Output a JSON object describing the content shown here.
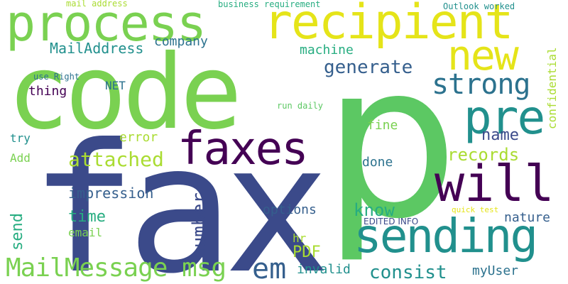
{
  "palette": {
    "background": "#ffffff",
    "dark_purple": "#440154",
    "indigo": "#3b4a8a",
    "blue": "#355f8d",
    "teal_blue": "#2c728e",
    "teal": "#21908d",
    "green_teal": "#27ad81",
    "green": "#5cc863",
    "light_green": "#7ad151",
    "lime": "#aadc32",
    "yellow": "#e5e419"
  },
  "words": {
    "fax": "fax",
    "p": "p",
    "code": "code",
    "process": "process",
    "recipient": "recipient",
    "faxes": "faxes",
    "sending": "sending",
    "will": "will",
    "pre": "pre",
    "new": "new",
    "em": "em",
    "strong": "strong",
    "mail_message_msg": "MailMessage msg",
    "attached": "attached",
    "generate": "generate",
    "records": "records",
    "number": "number",
    "consist": "consist",
    "pdf": "PDF",
    "know": "know",
    "send": "send",
    "name": "name",
    "time": "time",
    "mail_address": "MailAddress",
    "company": "company",
    "machine": "machine",
    "impression": "impression",
    "options": "options",
    "my_user": "myUser",
    "invalid": "invalid",
    "nature": "nature",
    "thing": "thing",
    "done": "done",
    "error": "error",
    "fine": "fine",
    "confidential": "confidential",
    "net": "NET",
    "email": "email",
    "hr": "hr",
    "try": "try",
    "add": "Add",
    "run_daily": "run daily",
    "use_right": "use Right",
    "mail_address_lower": "mail address",
    "business_requirement": "business requirement",
    "outlook_worked": "Outlook worked",
    "edited_info": "EDITED INFO",
    "quick_test": "quick test"
  }
}
